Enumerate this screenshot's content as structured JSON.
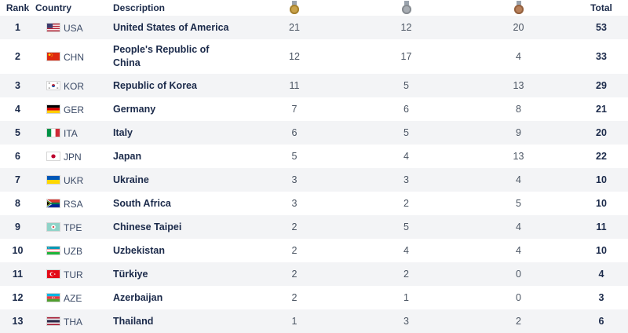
{
  "header": {
    "rank": "Rank",
    "country": "Country",
    "description": "Description",
    "total": "Total",
    "medal_icons": [
      {
        "name": "gold-medal-icon",
        "color": "#c9a24a"
      },
      {
        "name": "silver-medal-icon",
        "color": "#a8adb3"
      },
      {
        "name": "bronze-medal-icon",
        "color": "#b8805a"
      }
    ]
  },
  "rows": [
    {
      "rank": "1",
      "code": "USA",
      "name": "United States of America",
      "gold": "21",
      "silver": "12",
      "bronze": "20",
      "total": "53",
      "flag": "usa-flag-icon"
    },
    {
      "rank": "2",
      "code": "CHN",
      "name": "People's Republic of China",
      "gold": "12",
      "silver": "17",
      "bronze": "4",
      "total": "33",
      "flag": "chn-flag-icon"
    },
    {
      "rank": "3",
      "code": "KOR",
      "name": "Republic of Korea",
      "gold": "11",
      "silver": "5",
      "bronze": "13",
      "total": "29",
      "flag": "kor-flag-icon"
    },
    {
      "rank": "4",
      "code": "GER",
      "name": "Germany",
      "gold": "7",
      "silver": "6",
      "bronze": "8",
      "total": "21",
      "flag": "ger-flag-icon"
    },
    {
      "rank": "5",
      "code": "ITA",
      "name": "Italy",
      "gold": "6",
      "silver": "5",
      "bronze": "9",
      "total": "20",
      "flag": "ita-flag-icon"
    },
    {
      "rank": "6",
      "code": "JPN",
      "name": "Japan",
      "gold": "5",
      "silver": "4",
      "bronze": "13",
      "total": "22",
      "flag": "jpn-flag-icon"
    },
    {
      "rank": "7",
      "code": "UKR",
      "name": "Ukraine",
      "gold": "3",
      "silver": "3",
      "bronze": "4",
      "total": "10",
      "flag": "ukr-flag-icon"
    },
    {
      "rank": "8",
      "code": "RSA",
      "name": "South Africa",
      "gold": "3",
      "silver": "2",
      "bronze": "5",
      "total": "10",
      "flag": "rsa-flag-icon"
    },
    {
      "rank": "9",
      "code": "TPE",
      "name": "Chinese Taipei",
      "gold": "2",
      "silver": "5",
      "bronze": "4",
      "total": "11",
      "flag": "tpe-flag-icon"
    },
    {
      "rank": "10",
      "code": "UZB",
      "name": "Uzbekistan",
      "gold": "2",
      "silver": "4",
      "bronze": "4",
      "total": "10",
      "flag": "uzb-flag-icon"
    },
    {
      "rank": "11",
      "code": "TUR",
      "name": "Türkiye",
      "gold": "2",
      "silver": "2",
      "bronze": "0",
      "total": "4",
      "flag": "tur-flag-icon"
    },
    {
      "rank": "12",
      "code": "AZE",
      "name": "Azerbaijan",
      "gold": "2",
      "silver": "1",
      "bronze": "0",
      "total": "3",
      "flag": "aze-flag-icon"
    },
    {
      "rank": "13",
      "code": "THA",
      "name": "Thailand",
      "gold": "1",
      "silver": "3",
      "bronze": "2",
      "total": "6",
      "flag": "tha-flag-icon"
    }
  ]
}
